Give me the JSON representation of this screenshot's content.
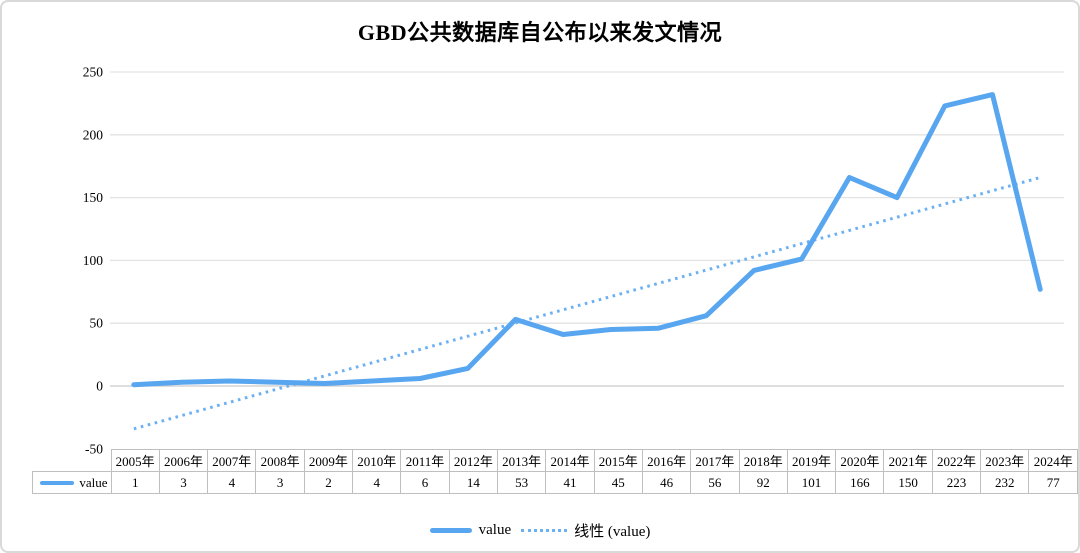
{
  "window": {
    "background": "#ffffff",
    "border_color": "#d9d9d9"
  },
  "chart_data": {
    "type": "line",
    "title": "GBD公共数据库自公布以来发文情况",
    "categories": [
      "2005年",
      "2006年",
      "2007年",
      "2008年",
      "2009年",
      "2010年",
      "2011年",
      "2012年",
      "2013年",
      "2014年",
      "2015年",
      "2016年",
      "2017年",
      "2018年",
      "2019年",
      "2020年",
      "2021年",
      "2022年",
      "2023年",
      "2024年"
    ],
    "series": [
      {
        "name": "value",
        "type": "line",
        "style": "solid",
        "color": "#58a6f0",
        "values": [
          1,
          3,
          4,
          3,
          2,
          4,
          6,
          14,
          53,
          41,
          45,
          46,
          56,
          92,
          101,
          166,
          150,
          223,
          232,
          77
        ]
      },
      {
        "name": "线性 (value)",
        "type": "linear-trendline",
        "style": "dotted",
        "color": "#6cb0f4",
        "start_value": -34.1,
        "end_value": 166
      }
    ],
    "ylim": [
      -50,
      250
    ],
    "yticks": [
      250,
      200,
      150,
      100,
      50,
      0,
      -50
    ],
    "grid": "horizontal",
    "legend_position": "bottom",
    "data_table_shown": true
  },
  "legend": {
    "entries": [
      {
        "label": "value",
        "swatch": "solid-line"
      },
      {
        "label": "线性 (value)",
        "swatch": "dotted-line"
      }
    ]
  },
  "colors": {
    "series_blue": "#58a6f0",
    "trendline_blue": "#6cb0f4",
    "gridline": "#e3e3e3",
    "zero_line": "#c9c9c9",
    "table_border": "#bfbfbf",
    "text": "#000000"
  }
}
